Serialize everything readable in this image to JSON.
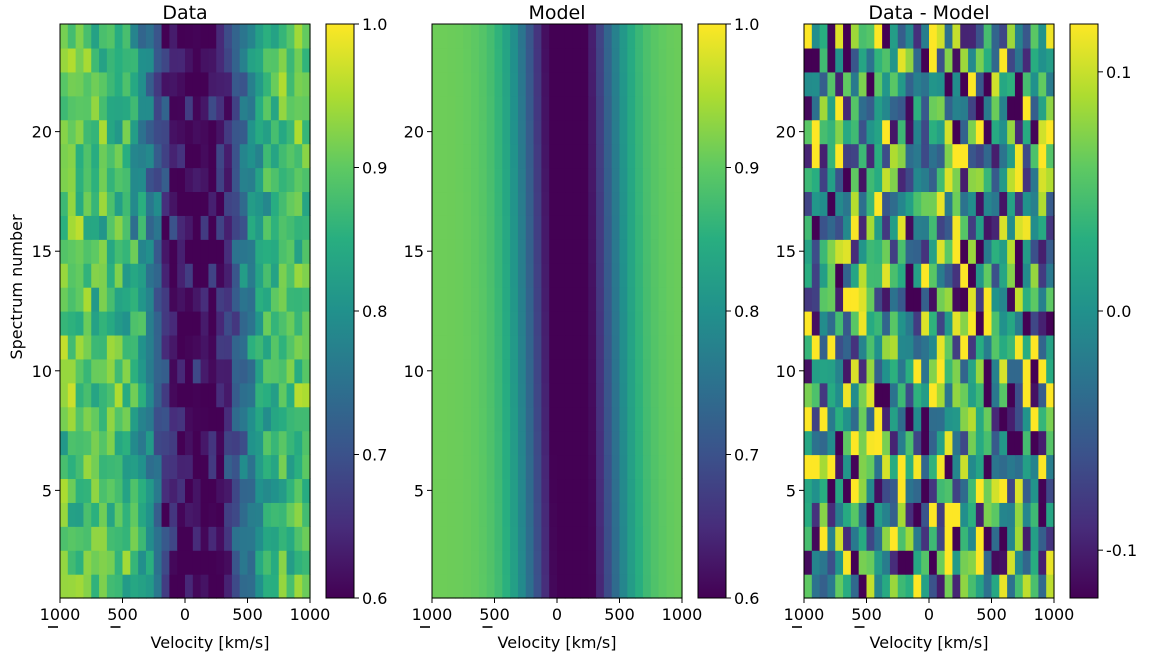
{
  "chart_data": [
    {
      "type": "heatmap",
      "title": "Data",
      "xlabel": "Velocity [km/s]",
      "ylabel": "Spectrum number",
      "xlim": [
        -1000,
        1000
      ],
      "ylim": [
        0.5,
        24.5
      ],
      "x_ticks": [
        -1000,
        -500,
        0,
        500,
        1000
      ],
      "x_tick_labels": [
        "1000",
        "500",
        "0",
        "500",
        "1000"
      ],
      "y_ticks": [
        5,
        10,
        15,
        20
      ],
      "y_tick_labels": [
        "5",
        "10",
        "15",
        "20"
      ],
      "n_spectra": 24,
      "n_velocity_bins": 32,
      "colormap": "viridis",
      "clim": [
        0.6,
        1.0
      ],
      "colorbar_ticks": [
        0.6,
        0.7,
        0.8,
        0.9,
        1.0
      ],
      "colorbar_tick_labels": [
        "0.6",
        "0.7",
        "0.8",
        "0.9",
        "1.0"
      ],
      "line_center_velocity_range": [
        130,
        80
      ],
      "line_depth_min": 0.6,
      "continuum_level": 0.9
    },
    {
      "type": "heatmap",
      "title": "Model",
      "xlabel": "Velocity [km/s]",
      "xlim": [
        -1000,
        1000
      ],
      "ylim": [
        0.5,
        24.5
      ],
      "x_ticks": [
        -1000,
        -500,
        0,
        500,
        1000
      ],
      "x_tick_labels": [
        "1000",
        "500",
        "0",
        "500",
        "1000"
      ],
      "y_ticks": [
        5,
        10,
        15,
        20
      ],
      "y_tick_labels": [
        "5",
        "10",
        "15",
        "20"
      ],
      "n_spectra": 24,
      "n_velocity_bins": 32,
      "colormap": "viridis",
      "clim": [
        0.6,
        1.0
      ],
      "colorbar_ticks": [
        0.6,
        0.7,
        0.8,
        0.9,
        1.0
      ],
      "colorbar_tick_labels": [
        "0.6",
        "0.7",
        "0.8",
        "0.9",
        "1.0"
      ],
      "line_center_velocity_range": [
        130,
        80
      ],
      "line_depth_min": 0.6,
      "continuum_level": 0.91
    },
    {
      "type": "heatmap",
      "title": "Data - Model",
      "xlabel": "Velocity [km/s]",
      "xlim": [
        -1000,
        1000
      ],
      "ylim": [
        0.5,
        24.5
      ],
      "x_ticks": [
        -1000,
        -500,
        0,
        500,
        1000
      ],
      "x_tick_labels": [
        "1000",
        "500",
        "0",
        "500",
        "1000"
      ],
      "y_ticks": [
        5,
        10,
        15,
        20
      ],
      "y_tick_labels": [
        "5",
        "10",
        "15",
        "20"
      ],
      "n_spectra": 24,
      "n_velocity_bins": 32,
      "colormap": "viridis",
      "clim": [
        -0.12,
        0.12
      ],
      "colorbar_ticks": [
        -0.1,
        0.0,
        0.1
      ],
      "colorbar_tick_labels": [
        "-0.1",
        "0.0",
        "0.1"
      ]
    }
  ]
}
